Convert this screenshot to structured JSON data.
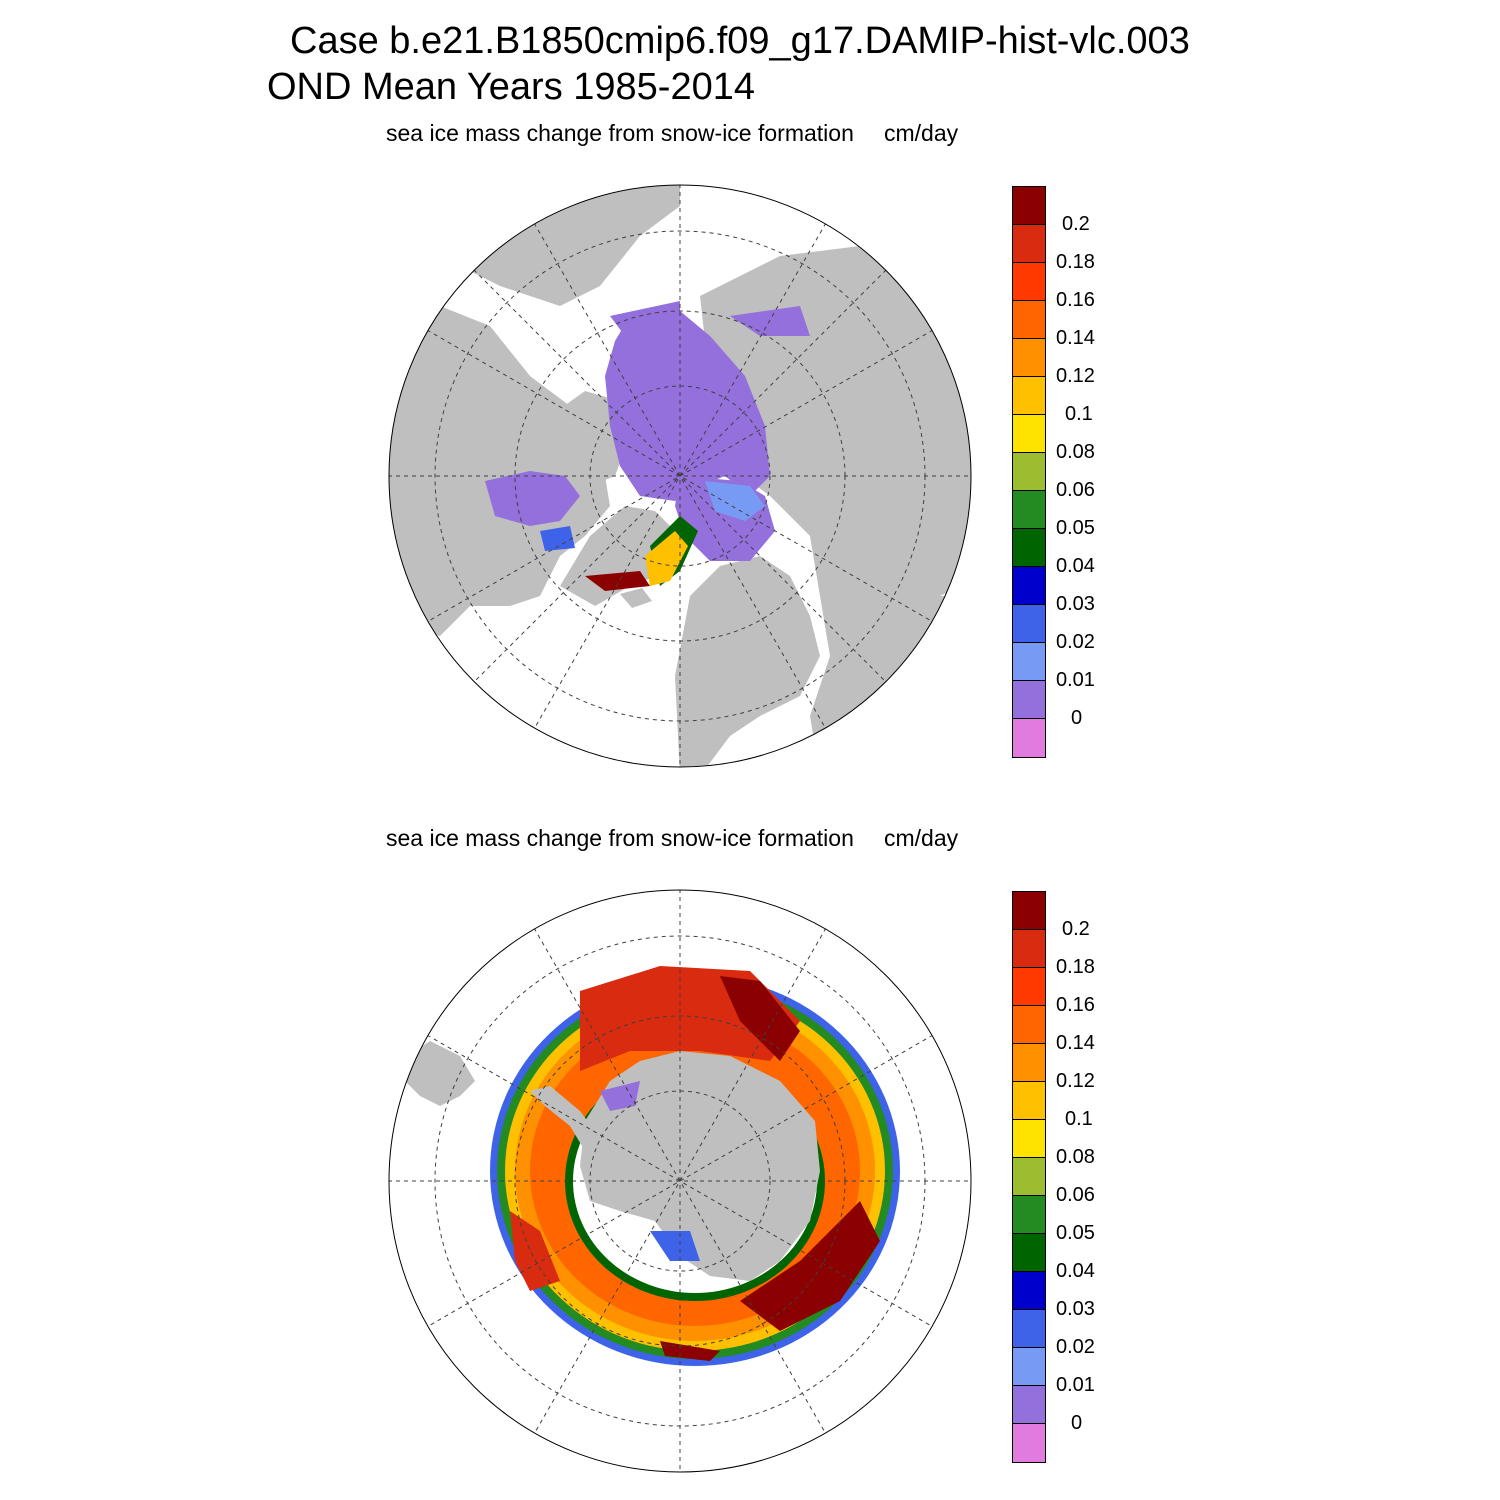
{
  "title": {
    "line1": "Case b.e21.B1850cmip6.f09_g17.DAMIP-hist-vlc.003",
    "line2": "OND Mean   Years 1985-2014"
  },
  "panels": [
    {
      "variable": "sea ice mass change from snow-ice formation",
      "units": "cm/day",
      "hemisphere": "north"
    },
    {
      "variable": "sea ice mass change from snow-ice formation",
      "units": "cm/day",
      "hemisphere": "south"
    }
  ],
  "colorbar": {
    "labels": [
      "0.2",
      "0.18",
      "0.16",
      "0.14",
      "0.12",
      "0.1",
      "0.08",
      "0.06",
      "0.05",
      "0.04",
      "0.03",
      "0.02",
      "0.01",
      "0"
    ],
    "colors": [
      "#8b0000",
      "#d92b10",
      "#ff3a00",
      "#ff6600",
      "#ff9100",
      "#ffc000",
      "#ffe300",
      "#9dbd30",
      "#238b22",
      "#006400",
      "#0000cd",
      "#3e63e8",
      "#779bf5",
      "#9370db",
      "#e17be0"
    ]
  },
  "colors": {
    "land": "#bfbfbf",
    "ocean": "#ffffff",
    "grid": "#404040"
  }
}
